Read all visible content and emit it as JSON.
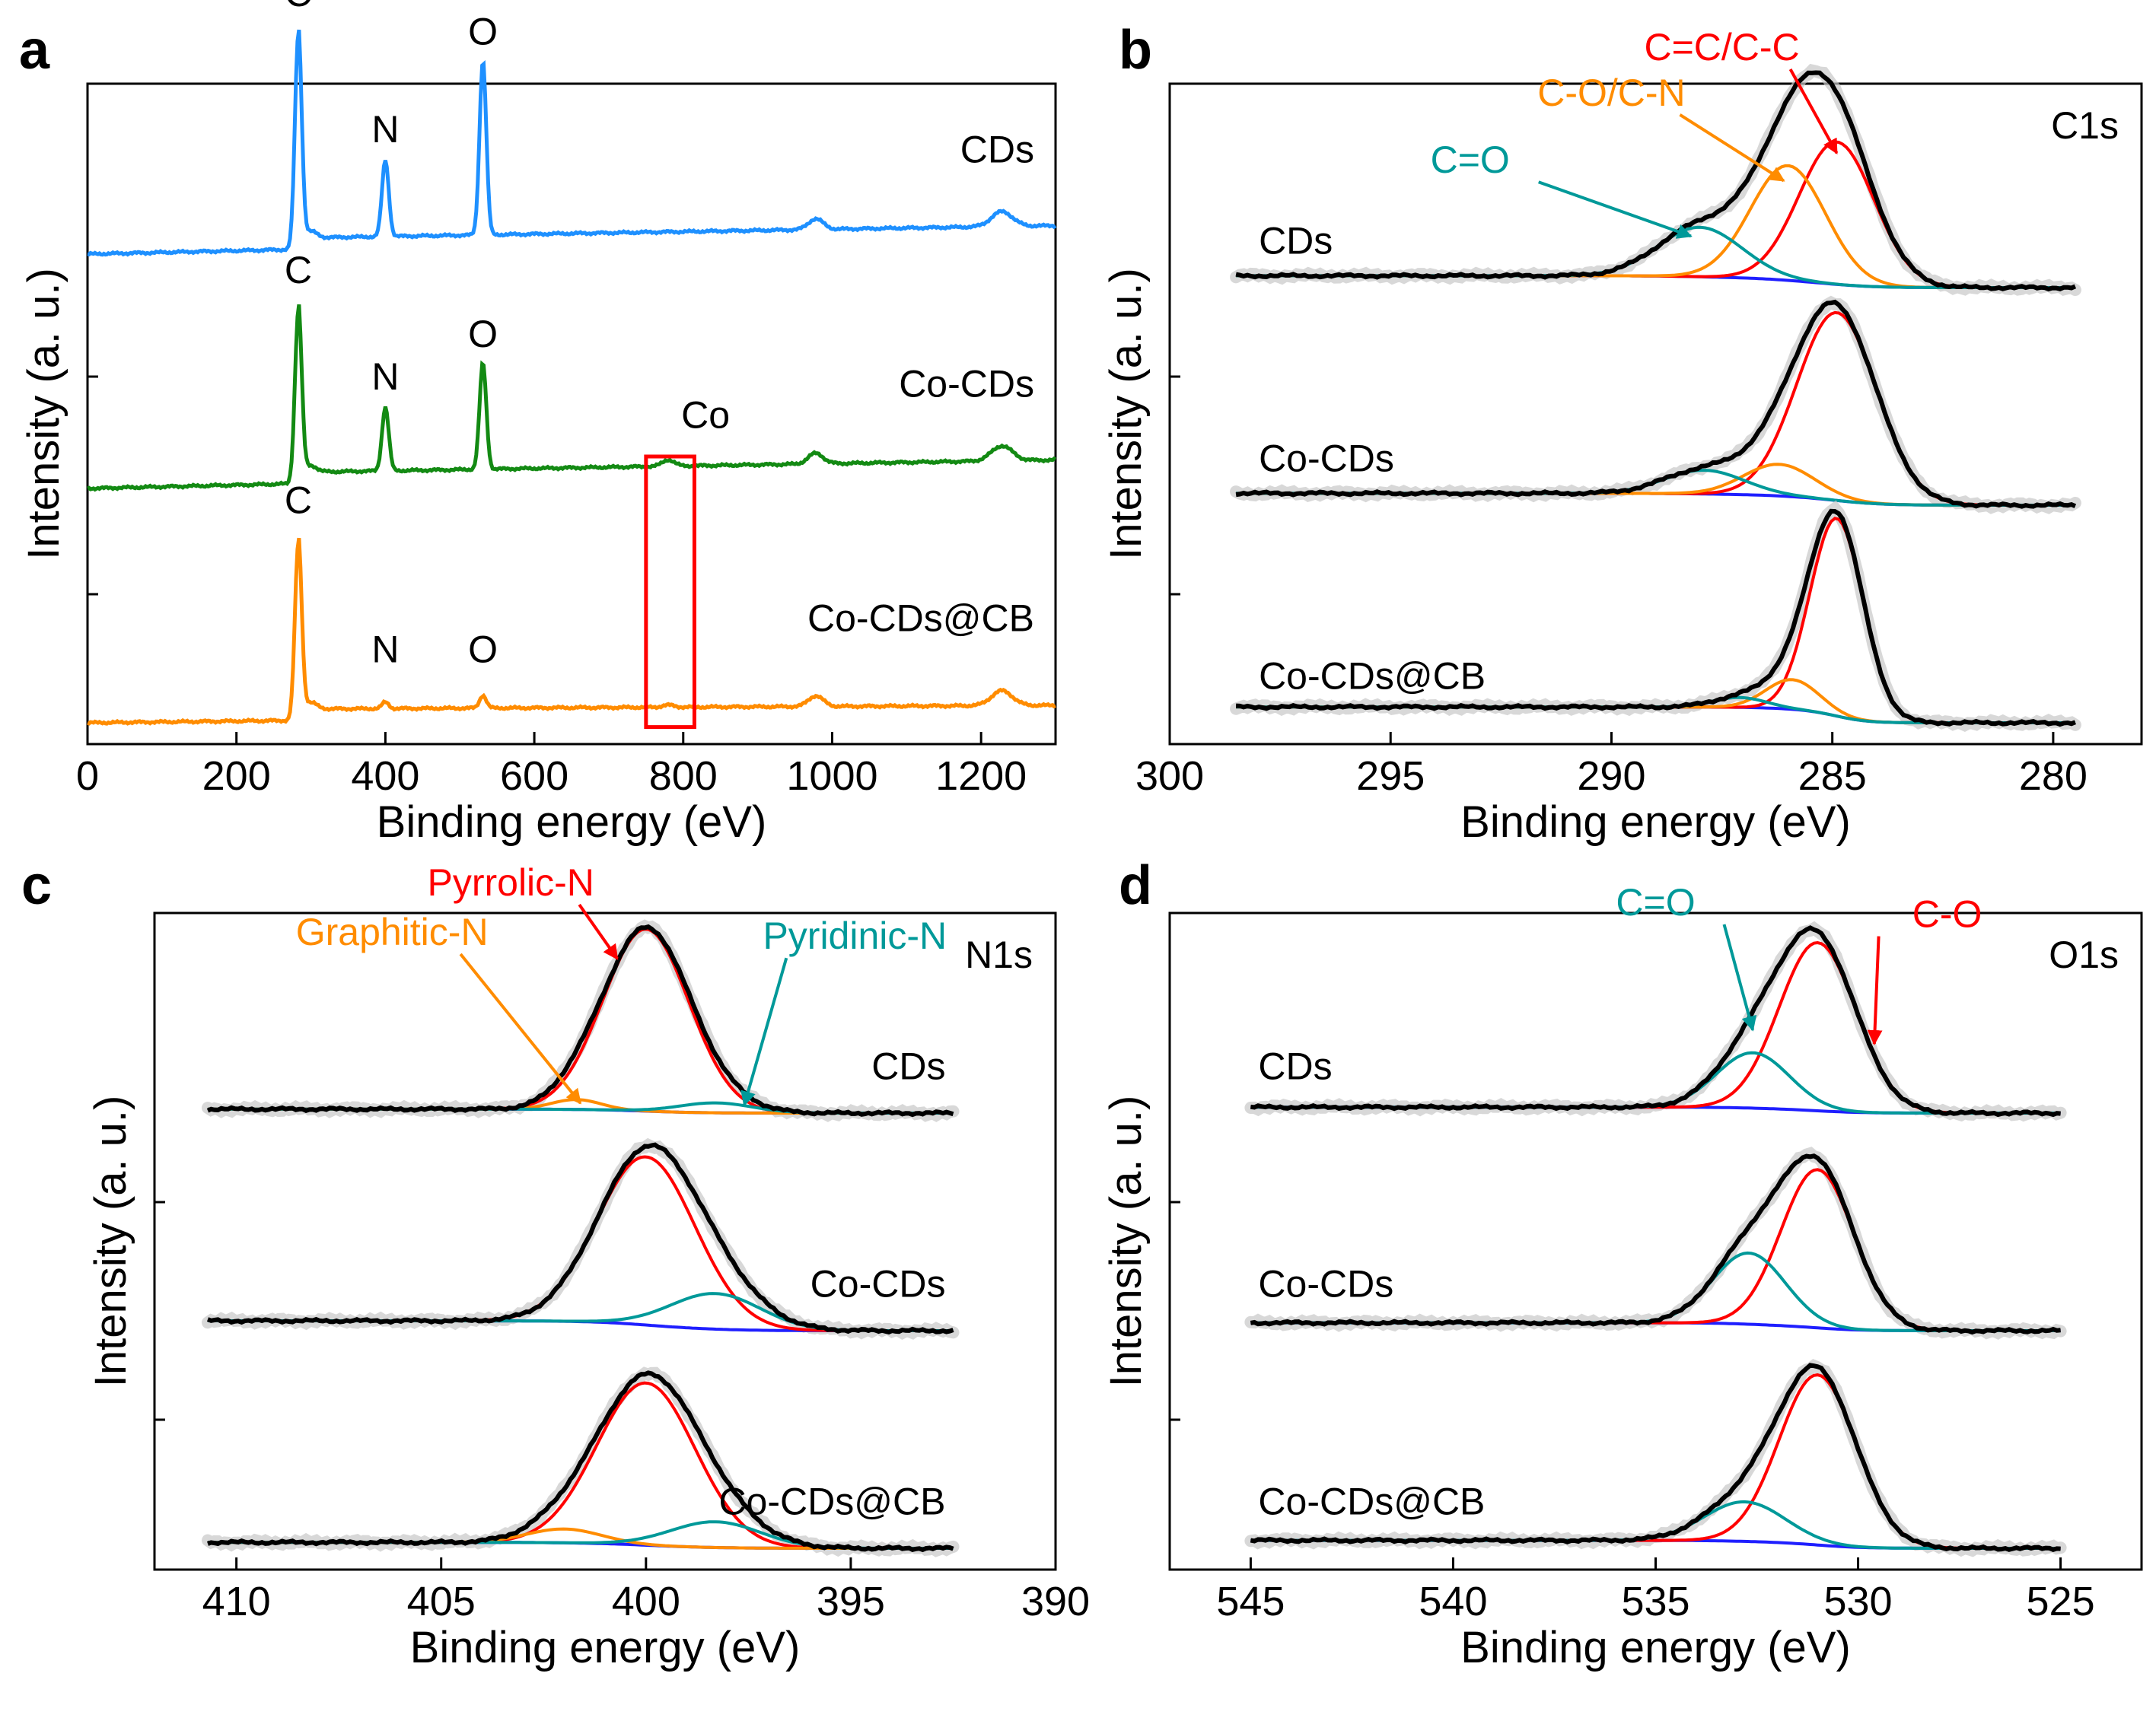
{
  "figure": {
    "panel_letters": [
      "a",
      "b",
      "c",
      "d"
    ]
  },
  "colors": {
    "blue": "#1e90ff",
    "green": "#138a13",
    "orange": "#ff8c00",
    "red": "#ff0000",
    "teal": "#009999",
    "baseline": "#1f1fff",
    "envelope": "#000000",
    "marker": "#c8c8c8",
    "box": "#ff0000"
  },
  "chart_data": [
    {
      "type": "line",
      "panel": "a",
      "title": "",
      "xlabel": "Binding energy (eV)",
      "ylabel": "Intensity (a. u.)",
      "xlim": [
        0,
        1300
      ],
      "x_ticks": [
        0,
        200,
        400,
        600,
        800,
        1000,
        1200
      ],
      "x_tick_labels": [
        "0",
        "200",
        "400",
        "600",
        "800",
        "1000",
        "1200"
      ],
      "series": [
        {
          "name": "CDs",
          "color": "#1e90ff",
          "offset": 2.2,
          "slope": 8e-05,
          "C": 1.0,
          "N": 0.36,
          "O": 0.82,
          "Co": 0.0
        },
        {
          "name": "Co-CDs",
          "color": "#138a13",
          "offset": 1.1,
          "slope": 8e-05,
          "C": 0.8,
          "N": 0.3,
          "O": 0.5,
          "Co": 0.03
        },
        {
          "name": "Co-CDs@CB",
          "color": "#ff8c00",
          "offset": 0.0,
          "slope": 4e-05,
          "C": 0.82,
          "N": 0.03,
          "O": 0.06,
          "Co": 0.01
        }
      ],
      "peak_labels": [
        {
          "text": "C",
          "x": 283,
          "series": 0
        },
        {
          "text": "N",
          "x": 400,
          "series": 0
        },
        {
          "text": "O",
          "x": 531,
          "series": 0
        },
        {
          "text": "C",
          "x": 283,
          "series": 1
        },
        {
          "text": "N",
          "x": 400,
          "series": 1
        },
        {
          "text": "O",
          "x": 531,
          "series": 1
        },
        {
          "text": "Co",
          "x": 830,
          "series": 1
        },
        {
          "text": "C",
          "x": 283,
          "series": 2
        },
        {
          "text": "N",
          "x": 400,
          "series": 2
        },
        {
          "text": "O",
          "x": 531,
          "series": 2
        }
      ],
      "highlight_range_ev": [
        750,
        815
      ]
    },
    {
      "type": "line",
      "panel": "b",
      "corner_label": "C1s",
      "xlabel": "Binding energy (eV)",
      "ylabel": "Intensity (a. u.)",
      "xlim": [
        300,
        278
      ],
      "x_ticks": [
        300,
        295,
        290,
        285,
        280
      ],
      "x_tick_labels": [
        "300",
        "295",
        "290",
        "285",
        "280"
      ],
      "x_data_range": [
        298.5,
        279.5
      ],
      "series": [
        {
          "name": "CDs",
          "offset": 2.2,
          "background": 0.06,
          "components": [
            {
              "label": "C=C/C-C",
              "center": 284.9,
              "height": 0.72,
              "width": 0.85,
              "color": "#ff0000"
            },
            {
              "label": "C-O/C-N",
              "center": 286.0,
              "height": 0.58,
              "width": 0.85,
              "color": "#ff8c00"
            },
            {
              "label": "C=O",
              "center": 288.0,
              "height": 0.25,
              "width": 0.95,
              "color": "#009999"
            }
          ]
        },
        {
          "name": "Co-CDs",
          "offset": 1.1,
          "background": 0.06,
          "components": [
            {
              "label": "C=C/C-C",
              "center": 284.9,
              "height": 0.95,
              "width": 0.9,
              "color": "#ff0000"
            },
            {
              "label": "C-O/C-N",
              "center": 286.2,
              "height": 0.16,
              "width": 0.8,
              "color": "#ff8c00"
            },
            {
              "label": "C=O",
              "center": 287.9,
              "height": 0.12,
              "width": 0.9,
              "color": "#009999"
            }
          ]
        },
        {
          "name": "Co-CDs@CB",
          "offset": 0.0,
          "background": 0.08,
          "components": [
            {
              "label": "C=C/C-C",
              "center": 284.9,
              "height": 1.0,
              "width": 0.6,
              "color": "#ff0000"
            },
            {
              "label": "C-O/C-N",
              "center": 285.9,
              "height": 0.15,
              "width": 0.6,
              "color": "#ff8c00"
            },
            {
              "label": "C=O",
              "center": 287.1,
              "height": 0.05,
              "width": 0.6,
              "color": "#009999"
            }
          ]
        }
      ],
      "annotations": [
        {
          "text": "C=C/C-C",
          "color": "#ff0000",
          "text_ev": 287.5,
          "text_level": 3.35,
          "arrow_ev": 284.9,
          "arrow_level": 2.88
        },
        {
          "text": "C-O/C-N",
          "color": "#ff8c00",
          "text_ev": 290.0,
          "text_level": 3.12,
          "arrow_ev": 286.1,
          "arrow_level": 2.74
        },
        {
          "text": "C=O",
          "color": "#009999",
          "text_ev": 293.2,
          "text_level": 2.78,
          "arrow_ev": 288.2,
          "arrow_level": 2.46
        }
      ]
    },
    {
      "type": "line",
      "panel": "c",
      "corner_label": "N1s",
      "xlabel": "Binding energy (eV)",
      "ylabel": "Intensity (a. u.)",
      "xlim": [
        412,
        390
      ],
      "x_ticks": [
        410,
        405,
        400,
        395,
        390
      ],
      "x_tick_labels": [
        "410",
        "405",
        "400",
        "395",
        "390"
      ],
      "x_data_range": [
        410.7,
        392.5
      ],
      "series": [
        {
          "name": "CDs",
          "offset": 2.2,
          "background": 0.02,
          "components": [
            {
              "label": "Pyrrolic-N",
              "center": 400.0,
              "height": 0.92,
              "width": 1.05,
              "color": "#ff0000"
            },
            {
              "label": "Graphitic-N",
              "center": 401.7,
              "height": 0.05,
              "width": 0.6,
              "color": "#ff8c00"
            },
            {
              "label": "Pyridinic-N",
              "center": 398.3,
              "height": 0.05,
              "width": 0.9,
              "color": "#009999"
            }
          ]
        },
        {
          "name": "Co-CDs",
          "offset": 1.1,
          "background": 0.05,
          "components": [
            {
              "label": "Pyrrolic-N",
              "center": 400.0,
              "height": 0.85,
              "width": 1.2,
              "color": "#ff0000"
            },
            {
              "label": "Pyridinic-N",
              "center": 398.3,
              "height": 0.18,
              "width": 1.1,
              "color": "#009999"
            }
          ]
        },
        {
          "name": "Co-CDs@CB",
          "offset": 0.0,
          "background": 0.03,
          "components": [
            {
              "label": "Pyrrolic-N",
              "center": 400.0,
              "height": 0.82,
              "width": 1.2,
              "color": "#ff0000"
            },
            {
              "label": "Graphitic-N",
              "center": 402.0,
              "height": 0.07,
              "width": 0.9,
              "color": "#ff8c00"
            },
            {
              "label": "Pyridinic-N",
              "center": 398.3,
              "height": 0.13,
              "width": 1.1,
              "color": "#009999"
            }
          ]
        }
      ],
      "annotations": [
        {
          "text": "Pyrrolic-N",
          "color": "#ff0000",
          "text_ev": 403.3,
          "text_level": 3.3,
          "arrow_ev": 400.7,
          "arrow_level": 2.98
        },
        {
          "text": "Graphitic-N",
          "color": "#ff8c00",
          "text_ev": 406.2,
          "text_level": 3.05,
          "arrow_ev": 401.6,
          "arrow_level": 2.25
        },
        {
          "text": "Pyridinic-N",
          "color": "#009999",
          "text_ev": 394.9,
          "text_level": 3.03,
          "arrow_ev": 397.6,
          "arrow_level": 2.24
        }
      ]
    },
    {
      "type": "line",
      "panel": "d",
      "corner_label": "O1s",
      "xlabel": "Binding energy (eV)",
      "ylabel": "Intensity (a. u.)",
      "xlim": [
        547,
        523
      ],
      "x_ticks": [
        545,
        540,
        535,
        530,
        525
      ],
      "x_tick_labels": [
        "545",
        "540",
        "535",
        "530",
        "525"
      ],
      "x_data_range": [
        545,
        525
      ],
      "series": [
        {
          "name": "CDs",
          "offset": 2.2,
          "background": 0.03,
          "components": [
            {
              "label": "C-O",
              "center": 531.0,
              "height": 0.85,
              "width": 0.95,
              "color": "#ff0000"
            },
            {
              "label": "C=O",
              "center": 532.6,
              "height": 0.28,
              "width": 0.9,
              "color": "#009999"
            }
          ]
        },
        {
          "name": "Co-CDs",
          "offset": 1.1,
          "background": 0.04,
          "components": [
            {
              "label": "C-O",
              "center": 531.0,
              "height": 0.8,
              "width": 0.9,
              "color": "#ff0000"
            },
            {
              "label": "C=O",
              "center": 532.7,
              "height": 0.36,
              "width": 0.9,
              "color": "#009999"
            }
          ]
        },
        {
          "name": "Co-CDs@CB",
          "offset": 0.0,
          "background": 0.04,
          "components": [
            {
              "label": "C-O",
              "center": 531.0,
              "height": 0.86,
              "width": 0.95,
              "color": "#ff0000"
            },
            {
              "label": "C=O",
              "center": 532.8,
              "height": 0.2,
              "width": 1.0,
              "color": "#009999"
            }
          ]
        }
      ],
      "annotations": [
        {
          "text": "C=O",
          "color": "#009999",
          "text_ev": 535.0,
          "text_level": 3.2,
          "arrow_ev": 532.6,
          "arrow_level": 2.62
        },
        {
          "text": "C-O",
          "color": "#ff0000",
          "text_ev": 527.8,
          "text_level": 3.14,
          "arrow_ev": 529.6,
          "arrow_level": 2.55
        }
      ]
    }
  ]
}
